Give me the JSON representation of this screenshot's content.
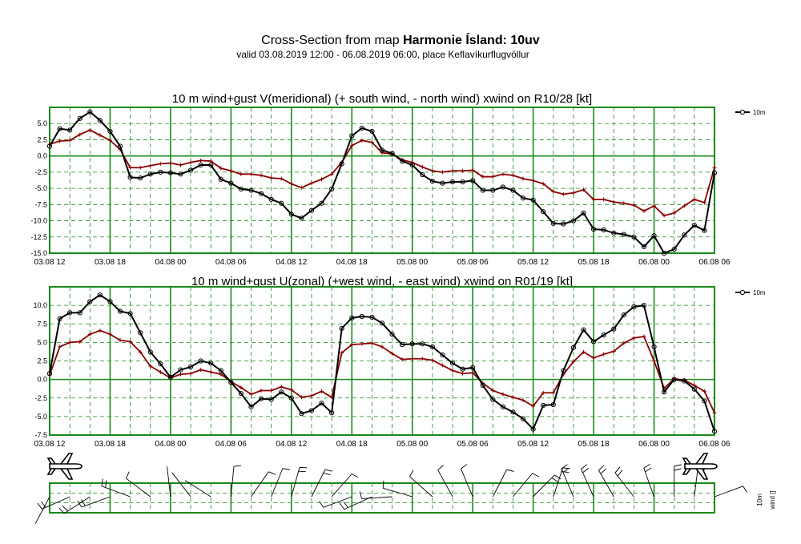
{
  "header": {
    "title_prefix": "Cross-Section from map ",
    "title_bold": "Harmonie Ísland: 10uv",
    "subtitle": "valid 03.08.2019 12:00 - 06.08.2019 06:00, place Keflavíkurflugvöllur"
  },
  "colors": {
    "grid": "#1a8a1a",
    "wind": "#000000",
    "gust": "#8b0000",
    "background": "#ffffff"
  },
  "legend_label": "10m",
  "wind_panel_labels": {
    "level": "10m",
    "name": "wind []"
  },
  "icons": [
    "airplane-icon-left",
    "airplane-icon-right"
  ],
  "chart_data": [
    {
      "type": "line",
      "title": "10 m wind+gust V(meridional) (+ south wind, - north wind) xwind on R10/28 [kt]",
      "x_tick_labels": [
        "03.08 12",
        "03.08 18",
        "04.08 00",
        "04.08 06",
        "04.08 12",
        "04.08 18",
        "05.08 00",
        "05.08 06",
        "05.08 12",
        "05.08 18",
        "06.08 00",
        "06.08 06"
      ],
      "x_range_hours": [
        0,
        66
      ],
      "ylim": [
        -15,
        7.5
      ],
      "y_ticks": [
        -15,
        -12.5,
        -10,
        -7.5,
        -5,
        -2.5,
        0,
        2.5,
        5
      ],
      "y_tick_labels": [
        "-15.0",
        "-12.5",
        "-10.0",
        "-7.5",
        "-5.0",
        "-2.5",
        "0.0",
        "2.5",
        "5.0"
      ],
      "grid": true,
      "legend": "top-right",
      "series": [
        {
          "name": "10m",
          "marker": "circle",
          "values": [
            1.5,
            4.2,
            4.0,
            5.8,
            6.8,
            5.5,
            3.8,
            1.5,
            -3.3,
            -3.4,
            -2.8,
            -2.5,
            -2.6,
            -2.8,
            -2.2,
            -1.4,
            -1.4,
            -3.6,
            -4.2,
            -5.1,
            -5.3,
            -5.8,
            -6.7,
            -7.3,
            -9.0,
            -9.6,
            -8.4,
            -7.3,
            -5.1,
            -1.2,
            3.1,
            4.3,
            3.8,
            0.9,
            0.4,
            -0.8,
            -1.4,
            -2.9,
            -3.9,
            -4.2,
            -4.0,
            -4.0,
            -3.8,
            -5.3,
            -5.3,
            -4.8,
            -5.3,
            -6.5,
            -6.8,
            -8.6,
            -10.4,
            -10.5,
            -10.0,
            -8.8,
            -11.3,
            -11.4,
            -11.9,
            -12.1,
            -12.5,
            -14.0,
            -12.3,
            -15.0,
            -14.4,
            -12.2,
            -10.7,
            -11.5,
            -2.6
          ]
        },
        {
          "marker": "plus",
          "values": [
            1.8,
            2.3,
            2.4,
            3.3,
            4.0,
            3.2,
            2.4,
            1.0,
            -1.8,
            -1.8,
            -1.5,
            -1.2,
            -1.1,
            -1.4,
            -1.0,
            -0.7,
            -0.8,
            -1.9,
            -2.3,
            -2.8,
            -2.8,
            -3.0,
            -3.4,
            -3.5,
            -4.3,
            -4.9,
            -4.2,
            -3.6,
            -2.8,
            -1.0,
            1.6,
            2.4,
            2.1,
            0.5,
            0.3,
            -0.6,
            -1.0,
            -1.7,
            -2.3,
            -2.5,
            -2.3,
            -2.3,
            -2.2,
            -3.2,
            -3.2,
            -2.8,
            -3.0,
            -3.5,
            -3.8,
            -4.3,
            -5.5,
            -5.9,
            -5.7,
            -5.2,
            -6.7,
            -6.7,
            -7.1,
            -7.3,
            -7.6,
            -8.5,
            -7.7,
            -9.2,
            -8.8,
            -7.7,
            -6.7,
            -7.2,
            -1.8
          ]
        }
      ]
    },
    {
      "type": "line",
      "title": "10 m wind+gust U(zonal) (+west wind, - east wind) xwind on R01/19 [kt]",
      "x_tick_labels": [
        "03.08 12",
        "03.08 18",
        "04.08 00",
        "04.08 06",
        "04.08 12",
        "04.08 18",
        "05.08 00",
        "05.08 06",
        "05.08 12",
        "05.08 18",
        "06.08 00",
        "06.08 06"
      ],
      "x_range_hours": [
        0,
        66
      ],
      "ylim": [
        -7.5,
        12.5
      ],
      "y_ticks": [
        -7.5,
        -5,
        -2.5,
        0,
        2.5,
        5,
        7.5,
        10
      ],
      "y_tick_labels": [
        "-7.5",
        "-5.0",
        "-2.5",
        "0.0",
        "2.5",
        "5.0",
        "7.5",
        "10.0"
      ],
      "grid": true,
      "legend": "top-right",
      "series": [
        {
          "name": "10m",
          "marker": "circle",
          "values": [
            0.8,
            8.2,
            9.0,
            9.0,
            10.5,
            11.4,
            10.5,
            9.2,
            8.9,
            6.3,
            3.7,
            2.1,
            0.3,
            1.3,
            1.7,
            2.5,
            2.2,
            1.2,
            -0.4,
            -1.9,
            -3.7,
            -2.6,
            -2.7,
            -1.7,
            -2.5,
            -4.6,
            -4.2,
            -3.2,
            -4.5,
            6.9,
            8.3,
            8.5,
            8.4,
            7.6,
            6.1,
            4.7,
            4.8,
            4.8,
            4.4,
            3.3,
            2.2,
            1.4,
            1.6,
            -0.8,
            -2.7,
            -3.7,
            -4.4,
            -5.3,
            -6.7,
            -3.5,
            -3.4,
            1.2,
            4.3,
            6.7,
            5.1,
            6.0,
            6.8,
            8.7,
            9.8,
            10.0,
            4.4,
            -1.7,
            0.0,
            -0.2,
            -1.3,
            -2.9,
            -7.0
          ]
        },
        {
          "marker": "plus",
          "values": [
            0.6,
            4.4,
            5.0,
            5.1,
            6.1,
            6.6,
            6.1,
            5.3,
            5.1,
            3.7,
            1.8,
            1.0,
            0.2,
            0.7,
            0.8,
            1.3,
            1.0,
            0.7,
            -0.3,
            -1.1,
            -2.0,
            -1.5,
            -1.5,
            -1.0,
            -1.4,
            -2.4,
            -2.2,
            -1.6,
            -2.4,
            3.6,
            4.7,
            4.8,
            4.9,
            4.4,
            3.5,
            2.7,
            2.8,
            2.8,
            2.6,
            1.9,
            1.2,
            0.8,
            0.9,
            -0.5,
            -1.5,
            -2.0,
            -2.4,
            -2.8,
            -3.6,
            -1.8,
            -1.8,
            0.7,
            2.4,
            3.7,
            2.9,
            3.4,
            3.8,
            4.9,
            5.6,
            5.8,
            2.5,
            -1.2,
            0.1,
            -0.1,
            -0.8,
            -1.6,
            -4.5
          ]
        }
      ]
    }
  ]
}
